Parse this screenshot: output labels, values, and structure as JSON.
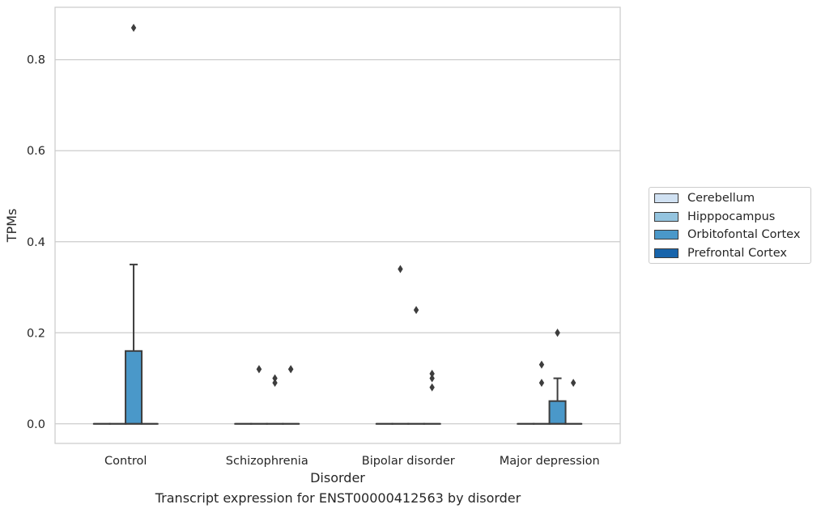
{
  "chart_data": {
    "type": "boxplot",
    "caption": "Transcript expression for ENST00000412563 by disorder",
    "xlabel": "Disorder",
    "ylabel": "TPMs",
    "ylim": [
      -0.043,
      0.915
    ],
    "yticks": [
      0.0,
      0.2,
      0.4,
      0.6,
      0.8
    ],
    "ytick_labels": [
      "0.0",
      "0.2",
      "0.4",
      "0.6",
      "0.8"
    ],
    "grid": "horizontal",
    "legend_position": "center-right",
    "categories": [
      "Control",
      "Schizophrenia",
      "Bipolar disorder",
      "Major depression"
    ],
    "series": [
      {
        "name": "Cerebellum",
        "color": "#d0e1f2",
        "boxes": [
          {
            "q1": 0,
            "median": 0,
            "q3": 0,
            "whisker_low": 0,
            "whisker_high": 0,
            "outliers": []
          },
          {
            "q1": 0,
            "median": 0,
            "q3": 0,
            "whisker_low": 0,
            "whisker_high": 0,
            "outliers": []
          },
          {
            "q1": 0,
            "median": 0,
            "q3": 0,
            "whisker_low": 0,
            "whisker_high": 0,
            "outliers": []
          },
          {
            "q1": 0,
            "median": 0,
            "q3": 0,
            "whisker_low": 0,
            "whisker_high": 0,
            "outliers": []
          }
        ]
      },
      {
        "name": "Hipppocampus",
        "color": "#94c4df",
        "boxes": [
          {
            "q1": 0,
            "median": 0,
            "q3": 0,
            "whisker_low": 0,
            "whisker_high": 0,
            "outliers": []
          },
          {
            "q1": 0,
            "median": 0,
            "q3": 0,
            "whisker_low": 0,
            "whisker_high": 0,
            "outliers": [
              0.12,
              0.12
            ]
          },
          {
            "q1": 0,
            "median": 0,
            "q3": 0,
            "whisker_low": 0,
            "whisker_high": 0,
            "outliers": [
              0.34
            ]
          },
          {
            "q1": 0,
            "median": 0,
            "q3": 0,
            "whisker_low": 0,
            "whisker_high": 0,
            "outliers": [
              0.13,
              0.09
            ]
          }
        ]
      },
      {
        "name": "Orbitofontal Cortex",
        "color": "#4a98c9",
        "boxes": [
          {
            "q1": 0,
            "median": 0,
            "q3": 0.16,
            "whisker_low": 0,
            "whisker_high": 0.35,
            "outliers": [
              0.87
            ]
          },
          {
            "q1": 0,
            "median": 0,
            "q3": 0,
            "whisker_low": 0,
            "whisker_high": 0,
            "outliers": [
              0.1,
              0.09
            ]
          },
          {
            "q1": 0,
            "median": 0,
            "q3": 0,
            "whisker_low": 0,
            "whisker_high": 0,
            "outliers": [
              0.25
            ]
          },
          {
            "q1": 0,
            "median": 0,
            "q3": 0.05,
            "whisker_low": 0,
            "whisker_high": 0.1,
            "outliers": [
              0.2,
              0.2
            ]
          }
        ]
      },
      {
        "name": "Prefrontal Cortex",
        "color": "#1764ab",
        "boxes": [
          {
            "q1": 0,
            "median": 0,
            "q3": 0,
            "whisker_low": 0,
            "whisker_high": 0,
            "outliers": []
          },
          {
            "q1": 0,
            "median": 0,
            "q3": 0,
            "whisker_low": 0,
            "whisker_high": 0,
            "outliers": [
              0.12,
              0.12
            ]
          },
          {
            "q1": 0,
            "median": 0,
            "q3": 0,
            "whisker_low": 0,
            "whisker_high": 0,
            "outliers": [
              0.11,
              0.1,
              0.08
            ]
          },
          {
            "q1": 0,
            "median": 0,
            "q3": 0,
            "whisker_low": 0,
            "whisker_high": 0,
            "outliers": [
              0.09
            ]
          }
        ]
      }
    ]
  }
}
